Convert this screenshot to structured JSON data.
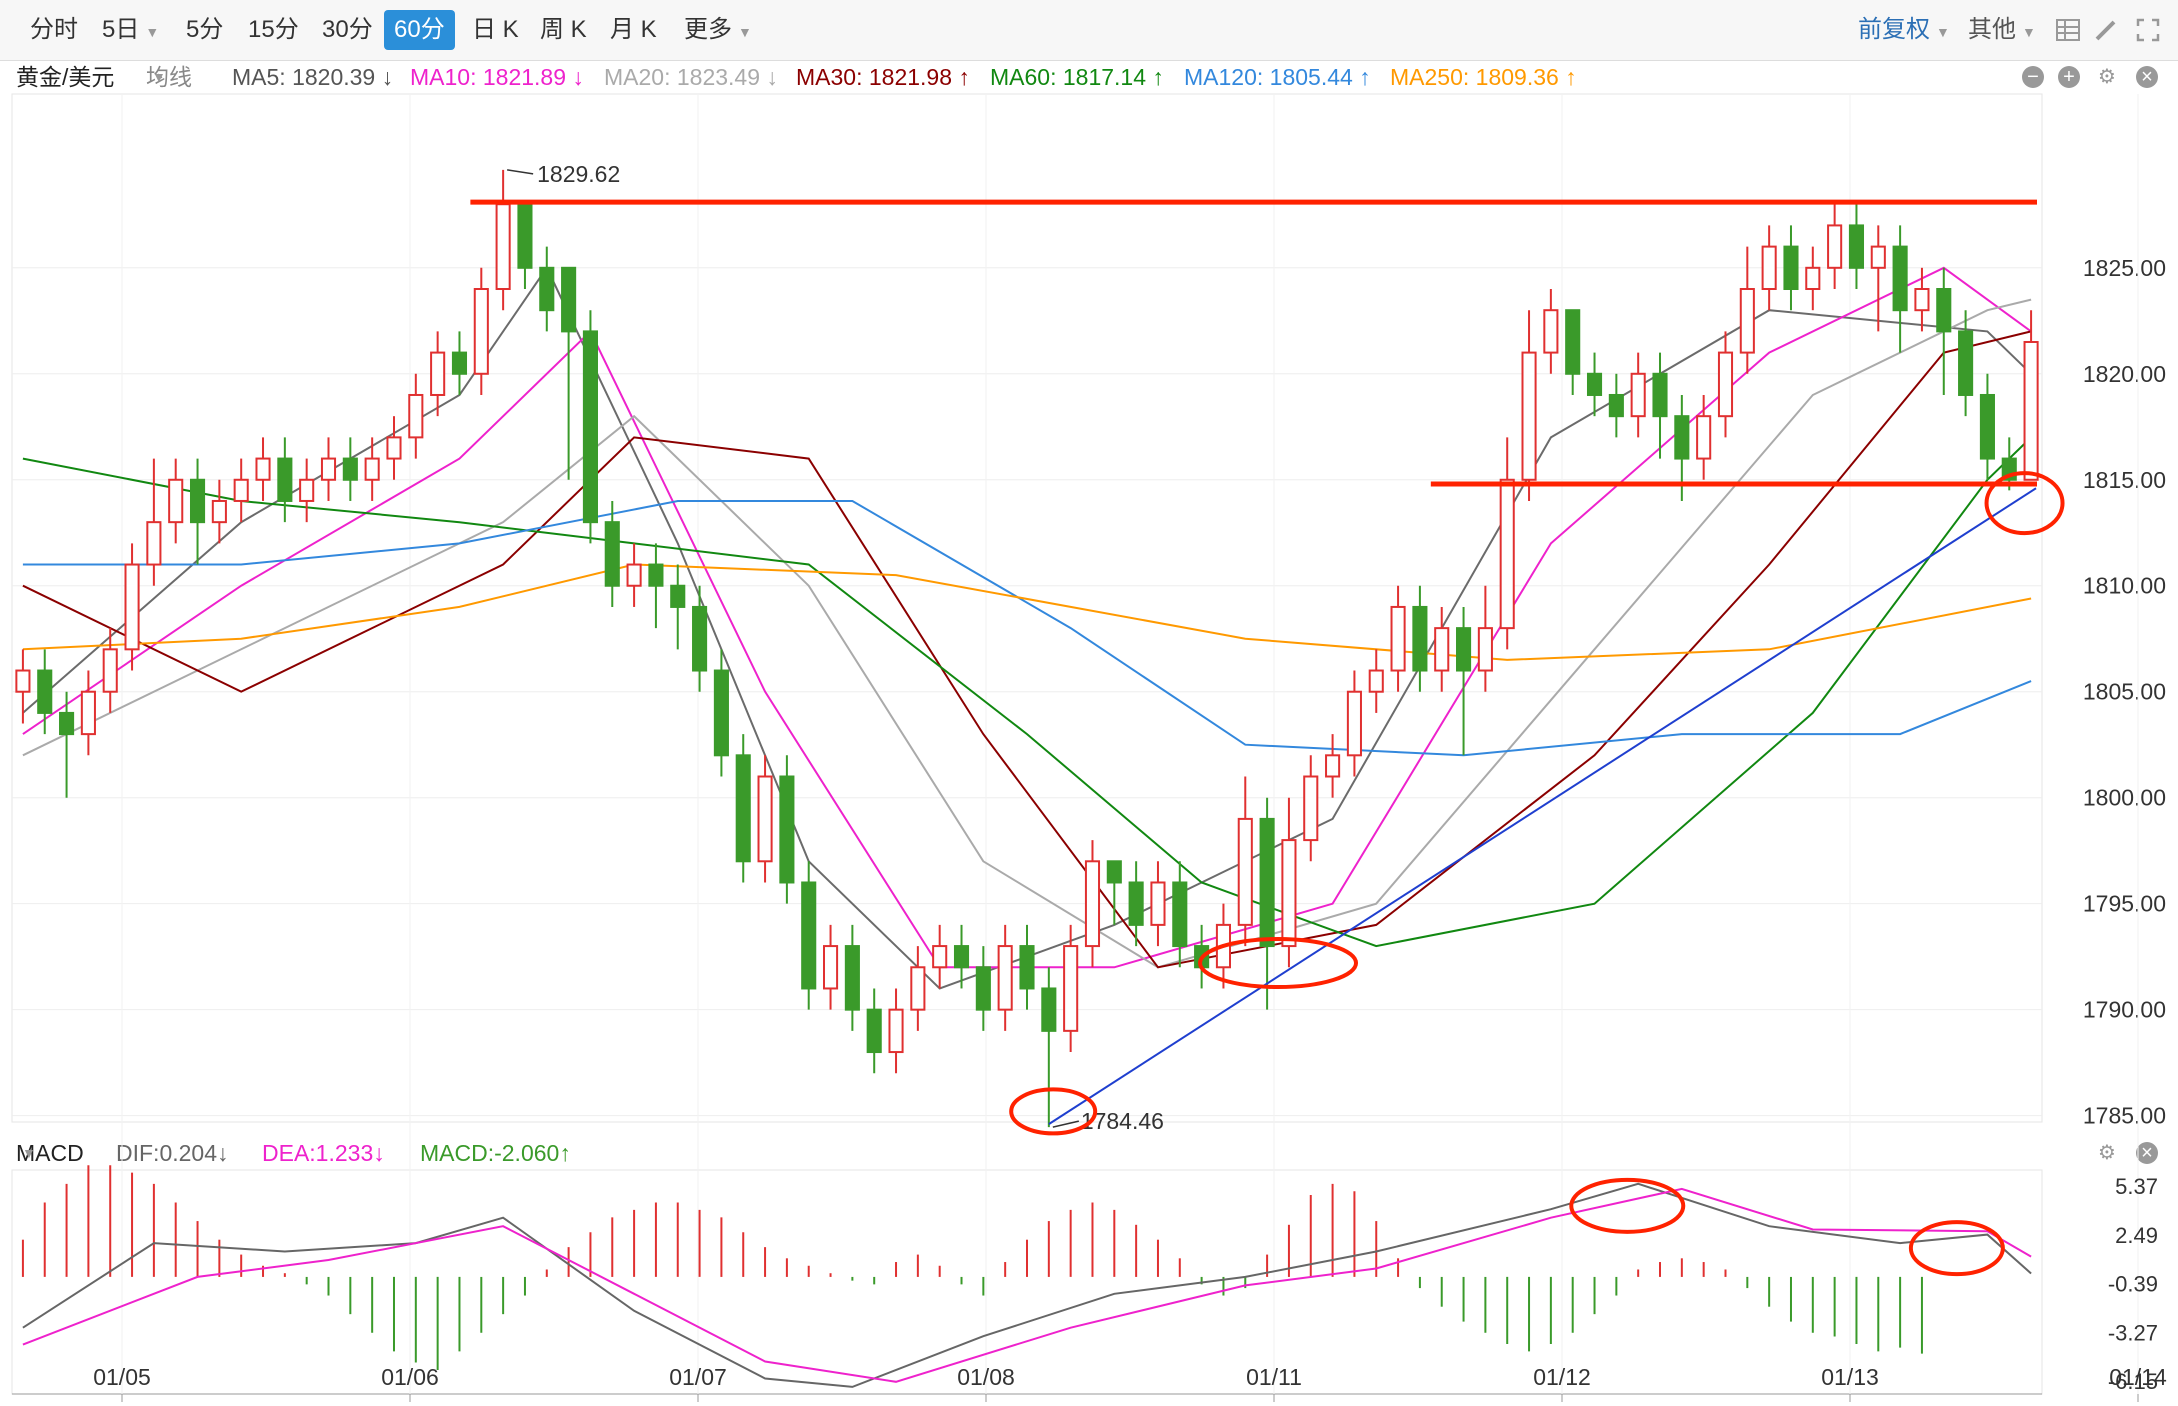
{
  "toolbar": {
    "periods": [
      "分时",
      "5日",
      "5分",
      "15分",
      "30分",
      "60分",
      "日 K",
      "周 K",
      "月 K",
      "更多"
    ],
    "active_period": "60分",
    "adjust": "前复权",
    "other": "其他"
  },
  "main_header": {
    "symbol": "黄金/美元",
    "line_type": "均线",
    "ma5": "MA5: 1820.39 ↓",
    "ma10": "MA10: 1821.89 ↓",
    "ma20": "MA20: 1823.49 ↓",
    "ma30": "MA30: 1821.98 ↑",
    "ma60": "MA60: 1817.14 ↑",
    "ma120": "MA120: 1805.44 ↑",
    "ma250": "MA250: 1809.36 ↑"
  },
  "macd_header": {
    "label": "MACD",
    "dif": "DIF:0.204↓",
    "dea": "DEA:1.233↓",
    "macd": "MACD:-2.060↑"
  },
  "colors": {
    "up": "#e03030",
    "down": "#3a9a2a",
    "ma5": "#6b6b6b",
    "ma10": "#ee22cc",
    "ma20": "#aaaaaa",
    "ma30": "#8b0000",
    "ma60": "#118811",
    "ma120": "#3388dd",
    "ma250": "#ff9900",
    "trend": "#1f3fcf",
    "annotation": "#ff2200"
  },
  "chart_data": {
    "type": "candlestick",
    "title": "黄金/美元",
    "y_range": [
      1785,
      1830
    ],
    "y_ticks": [
      "1825.00",
      "1820.00",
      "1815.00",
      "1810.00",
      "1805.00",
      "1800.00",
      "1795.00",
      "1790.00",
      "1785.00"
    ],
    "x_ticks": [
      "01/05",
      "01/06",
      "01/07",
      "01/08",
      "01/11",
      "01/12",
      "01/13",
      "01/14"
    ],
    "high_label": "1829.62",
    "low_label": "1784.46",
    "candles": [
      [
        1805,
        1806,
        1807,
        1803.5
      ],
      [
        1806,
        1804,
        1807,
        1803
      ],
      [
        1804,
        1803,
        1805,
        1800
      ],
      [
        1803,
        1805,
        1806,
        1802
      ],
      [
        1805,
        1807,
        1808,
        1804
      ],
      [
        1807,
        1811,
        1812,
        1806
      ],
      [
        1811,
        1813,
        1816,
        1810
      ],
      [
        1813,
        1815,
        1816,
        1812
      ],
      [
        1815,
        1813,
        1816,
        1811
      ],
      [
        1813,
        1814,
        1815,
        1812
      ],
      [
        1814,
        1815,
        1816,
        1813
      ],
      [
        1815,
        1816,
        1817,
        1814
      ],
      [
        1816,
        1814,
        1817,
        1813
      ],
      [
        1814,
        1815,
        1816,
        1813
      ],
      [
        1815,
        1816,
        1817,
        1814
      ],
      [
        1816,
        1815,
        1817,
        1814
      ],
      [
        1815,
        1816,
        1817,
        1814
      ],
      [
        1816,
        1817,
        1818,
        1815
      ],
      [
        1817,
        1819,
        1820,
        1816
      ],
      [
        1819,
        1821,
        1822,
        1818
      ],
      [
        1821,
        1820,
        1822,
        1819
      ],
      [
        1820,
        1824,
        1825,
        1819
      ],
      [
        1824,
        1828,
        1829.62,
        1823
      ],
      [
        1828,
        1825,
        1828,
        1824
      ],
      [
        1825,
        1823,
        1826,
        1822
      ],
      [
        1825,
        1822,
        1825,
        1815
      ],
      [
        1822,
        1813,
        1823,
        1812
      ],
      [
        1813,
        1810,
        1814,
        1809
      ],
      [
        1810,
        1811,
        1812,
        1809
      ],
      [
        1811,
        1810,
        1812,
        1808
      ],
      [
        1810,
        1809,
        1811,
        1807
      ],
      [
        1809,
        1806,
        1810,
        1805
      ],
      [
        1806,
        1802,
        1807,
        1801
      ],
      [
        1802,
        1797,
        1803,
        1796
      ],
      [
        1797,
        1801,
        1802,
        1796
      ],
      [
        1801,
        1796,
        1802,
        1795
      ],
      [
        1796,
        1791,
        1797,
        1790
      ],
      [
        1791,
        1793,
        1794,
        1790
      ],
      [
        1793,
        1790,
        1794,
        1789
      ],
      [
        1790,
        1788,
        1791,
        1787
      ],
      [
        1788,
        1790,
        1791,
        1787
      ],
      [
        1790,
        1792,
        1793,
        1789
      ],
      [
        1792,
        1793,
        1794,
        1791
      ],
      [
        1793,
        1792,
        1794,
        1791
      ],
      [
        1792,
        1790,
        1793,
        1789
      ],
      [
        1790,
        1793,
        1794,
        1789
      ],
      [
        1793,
        1791,
        1794,
        1790
      ],
      [
        1791,
        1789,
        1792,
        1784.46
      ],
      [
        1789,
        1793,
        1794,
        1788
      ],
      [
        1793,
        1797,
        1798,
        1792
      ],
      [
        1797,
        1796,
        1797,
        1794
      ],
      [
        1796,
        1794,
        1797,
        1793
      ],
      [
        1794,
        1796,
        1797,
        1793
      ],
      [
        1796,
        1793,
        1797,
        1792
      ],
      [
        1793,
        1792,
        1794,
        1791
      ],
      [
        1792,
        1794,
        1795,
        1791
      ],
      [
        1794,
        1799,
        1801,
        1793
      ],
      [
        1799,
        1793,
        1800,
        1790
      ],
      [
        1793,
        1798,
        1800,
        1792
      ],
      [
        1798,
        1801,
        1802,
        1797
      ],
      [
        1801,
        1802,
        1803,
        1800
      ],
      [
        1802,
        1805,
        1806,
        1801
      ],
      [
        1805,
        1806,
        1807,
        1804
      ],
      [
        1806,
        1809,
        1810,
        1805
      ],
      [
        1809,
        1806,
        1810,
        1805
      ],
      [
        1806,
        1808,
        1809,
        1805
      ],
      [
        1808,
        1806,
        1809,
        1802
      ],
      [
        1806,
        1808,
        1810,
        1805
      ],
      [
        1808,
        1815,
        1817,
        1807
      ],
      [
        1815,
        1821,
        1823,
        1814
      ],
      [
        1821,
        1823,
        1824,
        1820
      ],
      [
        1823,
        1820,
        1823,
        1819
      ],
      [
        1820,
        1819,
        1821,
        1818
      ],
      [
        1819,
        1818,
        1820,
        1817
      ],
      [
        1818,
        1820,
        1821,
        1817
      ],
      [
        1820,
        1818,
        1821,
        1816
      ],
      [
        1818,
        1816,
        1819,
        1814
      ],
      [
        1816,
        1818,
        1819,
        1815
      ],
      [
        1818,
        1821,
        1822,
        1817
      ],
      [
        1821,
        1824,
        1826,
        1820
      ],
      [
        1824,
        1826,
        1827,
        1823
      ],
      [
        1826,
        1824,
        1827,
        1823
      ],
      [
        1824,
        1825,
        1826,
        1823
      ],
      [
        1825,
        1827,
        1828,
        1824
      ],
      [
        1827,
        1825,
        1828,
        1824
      ],
      [
        1825,
        1826,
        1827,
        1822
      ],
      [
        1826,
        1823,
        1827,
        1821
      ],
      [
        1823,
        1824,
        1825,
        1822
      ],
      [
        1824,
        1822,
        1825,
        1819
      ],
      [
        1822,
        1819,
        1823,
        1818
      ],
      [
        1819,
        1816,
        1820,
        1815
      ],
      [
        1816,
        1815,
        1817,
        1814.5
      ],
      [
        1815,
        1821.5,
        1823,
        1815
      ]
    ],
    "ma_series": [
      {
        "name": "MA5",
        "points": [
          [
            0,
            1804
          ],
          [
            10,
            1813
          ],
          [
            20,
            1819
          ],
          [
            24,
            1825
          ],
          [
            30,
            1812
          ],
          [
            36,
            1797
          ],
          [
            42,
            1791
          ],
          [
            50,
            1794
          ],
          [
            60,
            1799
          ],
          [
            70,
            1817
          ],
          [
            80,
            1823
          ],
          [
            90,
            1822
          ],
          [
            92,
            1820
          ]
        ]
      },
      {
        "name": "MA10",
        "points": [
          [
            0,
            1803
          ],
          [
            10,
            1810
          ],
          [
            20,
            1816
          ],
          [
            26,
            1822
          ],
          [
            34,
            1805
          ],
          [
            42,
            1792
          ],
          [
            50,
            1792
          ],
          [
            60,
            1795
          ],
          [
            70,
            1812
          ],
          [
            80,
            1821
          ],
          [
            88,
            1825
          ],
          [
            92,
            1822
          ]
        ]
      },
      {
        "name": "MA20",
        "points": [
          [
            0,
            1802
          ],
          [
            12,
            1808
          ],
          [
            22,
            1813
          ],
          [
            28,
            1818
          ],
          [
            36,
            1810
          ],
          [
            44,
            1797
          ],
          [
            52,
            1792
          ],
          [
            62,
            1795
          ],
          [
            72,
            1807
          ],
          [
            82,
            1819
          ],
          [
            90,
            1823
          ],
          [
            92,
            1823.5
          ]
        ]
      },
      {
        "name": "MA30",
        "points": [
          [
            0,
            1810
          ],
          [
            10,
            1805
          ],
          [
            22,
            1811
          ],
          [
            28,
            1817
          ],
          [
            36,
            1816
          ],
          [
            44,
            1803
          ],
          [
            52,
            1792
          ],
          [
            62,
            1794
          ],
          [
            72,
            1802
          ],
          [
            80,
            1811
          ],
          [
            88,
            1821
          ],
          [
            92,
            1822
          ]
        ]
      },
      {
        "name": "MA60",
        "points": [
          [
            0,
            1816
          ],
          [
            10,
            1814
          ],
          [
            20,
            1813
          ],
          [
            28,
            1812
          ],
          [
            36,
            1811
          ],
          [
            46,
            1803
          ],
          [
            54,
            1796
          ],
          [
            62,
            1793
          ],
          [
            72,
            1795
          ],
          [
            82,
            1804
          ],
          [
            90,
            1815
          ],
          [
            92,
            1817
          ]
        ]
      },
      {
        "name": "MA120",
        "points": [
          [
            0,
            1811
          ],
          [
            10,
            1811
          ],
          [
            20,
            1812
          ],
          [
            30,
            1814
          ],
          [
            38,
            1814
          ],
          [
            48,
            1808
          ],
          [
            56,
            1802.5
          ],
          [
            66,
            1802
          ],
          [
            76,
            1803
          ],
          [
            86,
            1803
          ],
          [
            92,
            1805.5
          ]
        ]
      },
      {
        "name": "MA250",
        "points": [
          [
            0,
            1807
          ],
          [
            10,
            1807.5
          ],
          [
            20,
            1809
          ],
          [
            28,
            1811
          ],
          [
            40,
            1810.5
          ],
          [
            56,
            1807.5
          ],
          [
            68,
            1806.5
          ],
          [
            80,
            1807
          ],
          [
            92,
            1809.4
          ]
        ]
      }
    ],
    "macd": {
      "y_ticks": [
        "5.37",
        "2.49",
        "-0.39",
        "-3.27",
        "-6.15"
      ],
      "dif": [
        [
          0,
          -3
        ],
        [
          6,
          2
        ],
        [
          12,
          1.5
        ],
        [
          18,
          2
        ],
        [
          22,
          3.5
        ],
        [
          28,
          -2
        ],
        [
          34,
          -6
        ],
        [
          38,
          -6.5
        ],
        [
          44,
          -3.5
        ],
        [
          50,
          -1
        ],
        [
          56,
          0
        ],
        [
          62,
          1.5
        ],
        [
          70,
          4
        ],
        [
          74,
          5.5
        ],
        [
          80,
          3
        ],
        [
          86,
          2
        ],
        [
          90,
          2.5
        ],
        [
          92,
          0.2
        ]
      ],
      "dea": [
        [
          0,
          -4
        ],
        [
          8,
          0
        ],
        [
          14,
          1
        ],
        [
          22,
          3
        ],
        [
          28,
          -1
        ],
        [
          34,
          -5
        ],
        [
          40,
          -6.2
        ],
        [
          48,
          -3
        ],
        [
          56,
          -0.5
        ],
        [
          62,
          0.5
        ],
        [
          70,
          3.5
        ],
        [
          76,
          5.2
        ],
        [
          82,
          2.8
        ],
        [
          90,
          2.7
        ],
        [
          92,
          1.2
        ]
      ],
      "hist": [
        1,
        2,
        2.5,
        3,
        3,
        2.8,
        2.5,
        2,
        1.5,
        1,
        0.6,
        0.3,
        0.1,
        -0.2,
        -0.5,
        -1,
        -1.5,
        -2,
        -2.3,
        -2.5,
        -2,
        -1.5,
        -1,
        -0.5,
        0.2,
        0.8,
        1.2,
        1.6,
        1.8,
        2,
        2,
        1.8,
        1.6,
        1.2,
        0.8,
        0.5,
        0.3,
        0.1,
        -0.1,
        -0.2,
        0.4,
        0.6,
        0.3,
        -0.2,
        -0.5,
        0.4,
        1,
        1.5,
        1.8,
        2,
        1.8,
        1.4,
        1,
        0.5,
        -0.2,
        -0.5,
        -0.3,
        0.6,
        1.4,
        2.2,
        2.5,
        2.3,
        1.5,
        0.5,
        -0.3,
        -0.8,
        -1.2,
        -1.5,
        -1.8,
        -2,
        -1.8,
        -1.5,
        -1,
        -0.5,
        0.2,
        0.4,
        0.5,
        0.4,
        0.2,
        -0.3,
        -0.8,
        -1.2,
        -1.5,
        -1.6,
        -1.8,
        -2,
        -1.9,
        -2.06
      ]
    }
  }
}
